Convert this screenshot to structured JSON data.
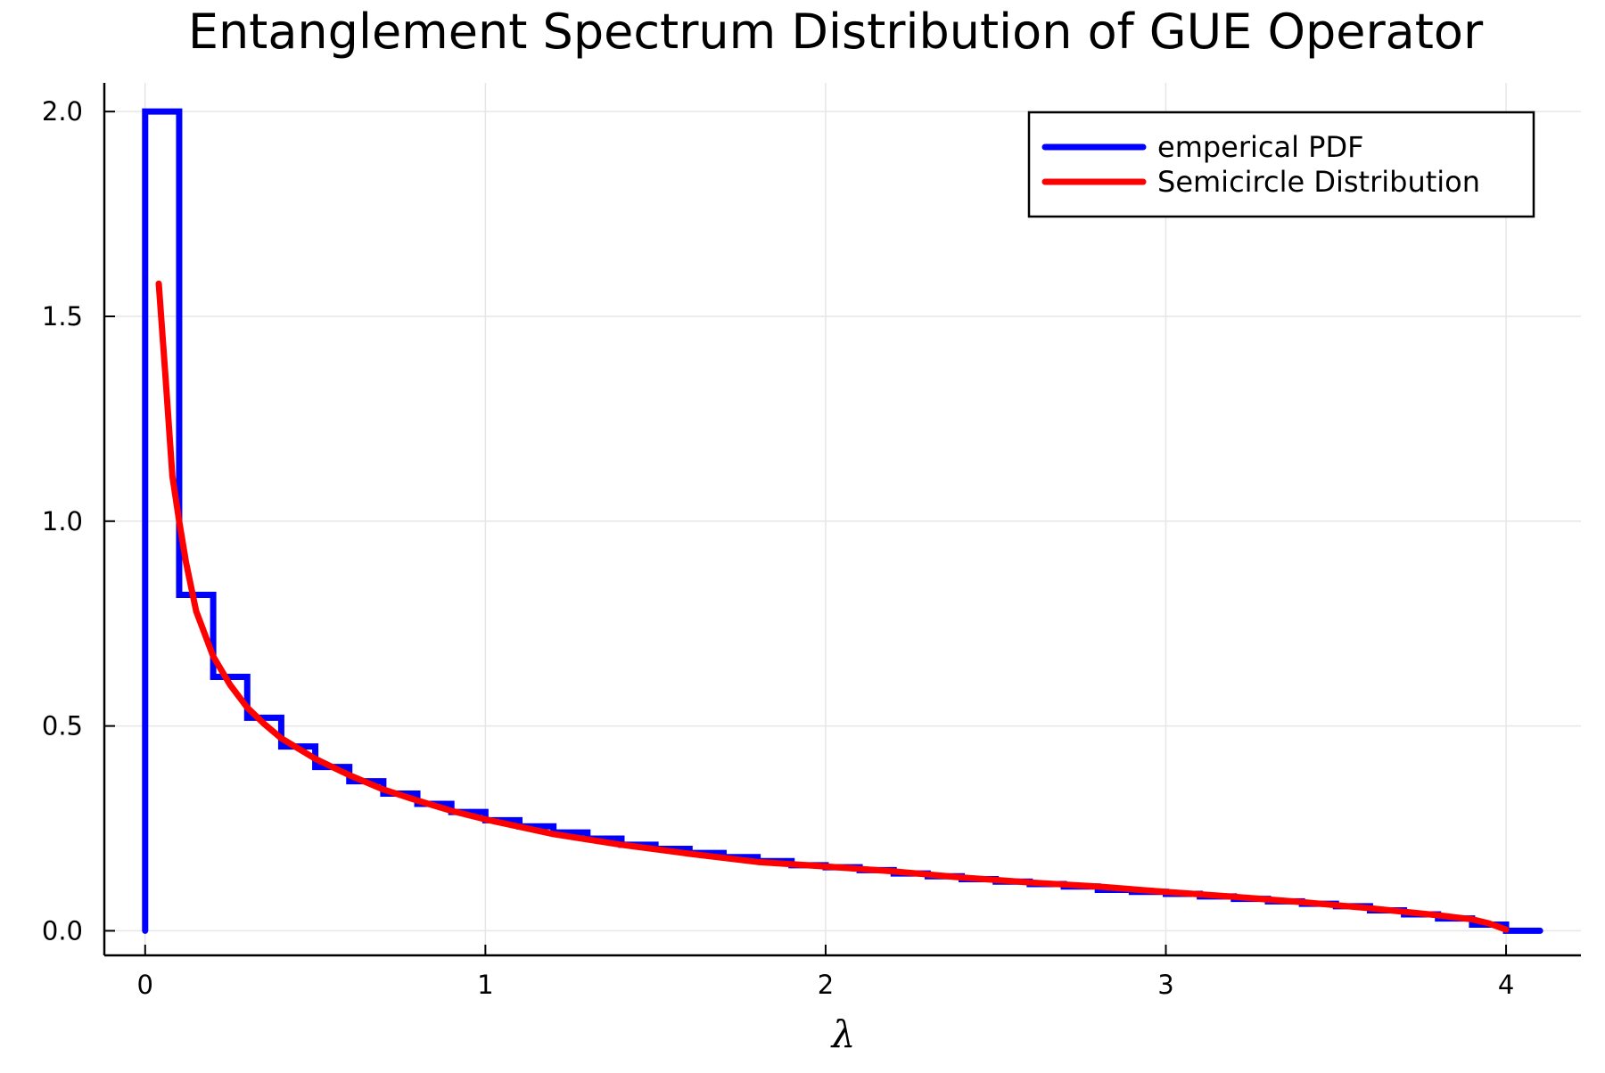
{
  "chart_data": {
    "type": "line",
    "title": "Entanglement Spectrum Distribution of GUE Operator",
    "xlabel": "λ",
    "ylabel": "",
    "xlim": [
      -0.12,
      4.22
    ],
    "ylim": [
      -0.06,
      2.07
    ],
    "xticks": [
      0,
      1,
      2,
      3,
      4
    ],
    "yticks": [
      0.0,
      0.5,
      1.0,
      1.5,
      2.0
    ],
    "xtick_labels": [
      "0",
      "1",
      "2",
      "3",
      "4"
    ],
    "ytick_labels": [
      "0.0",
      "0.5",
      "1.0",
      "1.5",
      "2.0"
    ],
    "grid": true,
    "legend_position": "top-right",
    "series": [
      {
        "name": "emperical PDF",
        "kind": "step",
        "color": "#0000ff",
        "bin_edges": [
          0.0,
          0.1,
          0.2,
          0.3,
          0.4,
          0.5,
          0.6,
          0.7,
          0.8,
          0.9,
          1.0,
          1.1,
          1.2,
          1.3,
          1.4,
          1.5,
          1.6,
          1.7,
          1.8,
          1.9,
          2.0,
          2.1,
          2.2,
          2.3,
          2.4,
          2.5,
          2.6,
          2.7,
          2.8,
          2.9,
          3.0,
          3.1,
          3.2,
          3.3,
          3.4,
          3.5,
          3.6,
          3.7,
          3.8,
          3.9,
          4.0,
          4.1
        ],
        "values": [
          2.0,
          0.82,
          0.62,
          0.52,
          0.45,
          0.4,
          0.365,
          0.335,
          0.31,
          0.29,
          0.27,
          0.255,
          0.24,
          0.225,
          0.21,
          0.2,
          0.19,
          0.18,
          0.17,
          0.16,
          0.155,
          0.148,
          0.14,
          0.133,
          0.126,
          0.12,
          0.114,
          0.108,
          0.1,
          0.095,
          0.09,
          0.084,
          0.078,
          0.072,
          0.066,
          0.06,
          0.05,
          0.04,
          0.03,
          0.015,
          0.0
        ]
      },
      {
        "name": "Semicircle Distribution",
        "kind": "line",
        "color": "#ff0000",
        "x": [
          0.04,
          0.06,
          0.08,
          0.1,
          0.12,
          0.15,
          0.2,
          0.25,
          0.3,
          0.35,
          0.4,
          0.5,
          0.6,
          0.7,
          0.8,
          0.9,
          1.0,
          1.2,
          1.4,
          1.6,
          1.8,
          2.0,
          2.2,
          2.4,
          2.6,
          2.8,
          3.0,
          3.2,
          3.4,
          3.6,
          3.8,
          3.9,
          3.95,
          4.0
        ],
        "y": [
          1.58,
          1.35,
          1.11,
          1.0,
          0.9,
          0.78,
          0.67,
          0.6,
          0.545,
          0.505,
          0.47,
          0.42,
          0.38,
          0.345,
          0.318,
          0.293,
          0.272,
          0.236,
          0.21,
          0.188,
          0.168,
          0.157,
          0.145,
          0.13,
          0.118,
          0.108,
          0.095,
          0.083,
          0.07,
          0.055,
          0.038,
          0.028,
          0.018,
          0.003
        ]
      }
    ]
  }
}
